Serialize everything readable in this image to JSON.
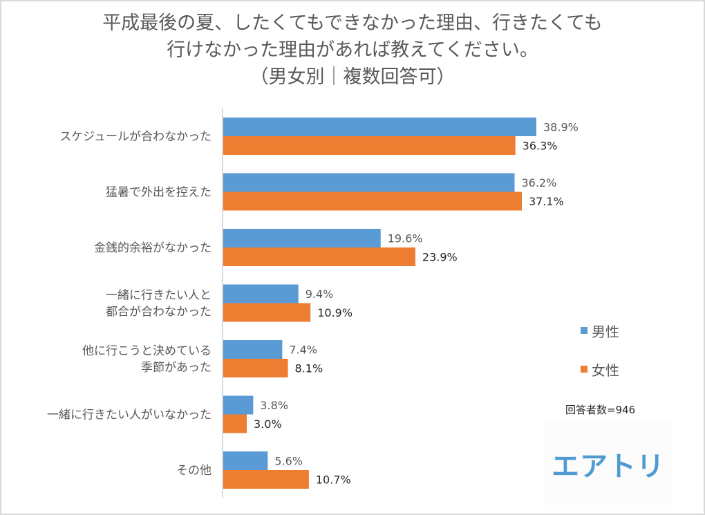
{
  "title_lines": [
    "平成最後の夏、したくてもできなかった理由、行きたくても",
    "行けなかった理由があれば教えてください。",
    "（男女別｜複数回答可）"
  ],
  "colors": {
    "male": "#5b9bd5",
    "female": "#ed7d31",
    "axis": "#d9d9d9"
  },
  "respondents_label": "回答者数=946",
  "logo_text": "エアトリ",
  "chart_data": {
    "type": "bar",
    "orientation": "horizontal",
    "title": "平成最後の夏、したくてもできなかった理由、行きたくても行けなかった理由があれば教えてください。（男女別｜複数回答可）",
    "xlabel": "",
    "ylabel": "",
    "xlim": [
      0,
      40
    ],
    "grid": false,
    "legend_position": "right",
    "categories": [
      [
        "スケジュールが合わなかった"
      ],
      [
        "猛暑で外出を控えた"
      ],
      [
        "金銭的余裕がなかった"
      ],
      [
        "一緒に行きたい人と",
        "都合が合わなかった"
      ],
      [
        "他に行こうと決めている",
        "季節があった"
      ],
      [
        "一緒に行きたい人がいなかった"
      ],
      [
        "その他"
      ]
    ],
    "series": [
      {
        "name": "男性",
        "values": [
          38.9,
          36.2,
          19.6,
          9.4,
          7.4,
          3.8,
          5.6
        ],
        "labels": [
          "38.9%",
          "36.2%",
          "19.6%",
          "9.4%",
          "7.4%",
          "3.8%",
          "5.6%"
        ]
      },
      {
        "name": "女性",
        "values": [
          36.3,
          37.1,
          23.9,
          10.9,
          8.1,
          3.0,
          10.7
        ],
        "labels": [
          "36.3%",
          "37.1%",
          "23.9%",
          "10.9%",
          "8.1%",
          "3.0%",
          "10.7%"
        ]
      }
    ]
  }
}
